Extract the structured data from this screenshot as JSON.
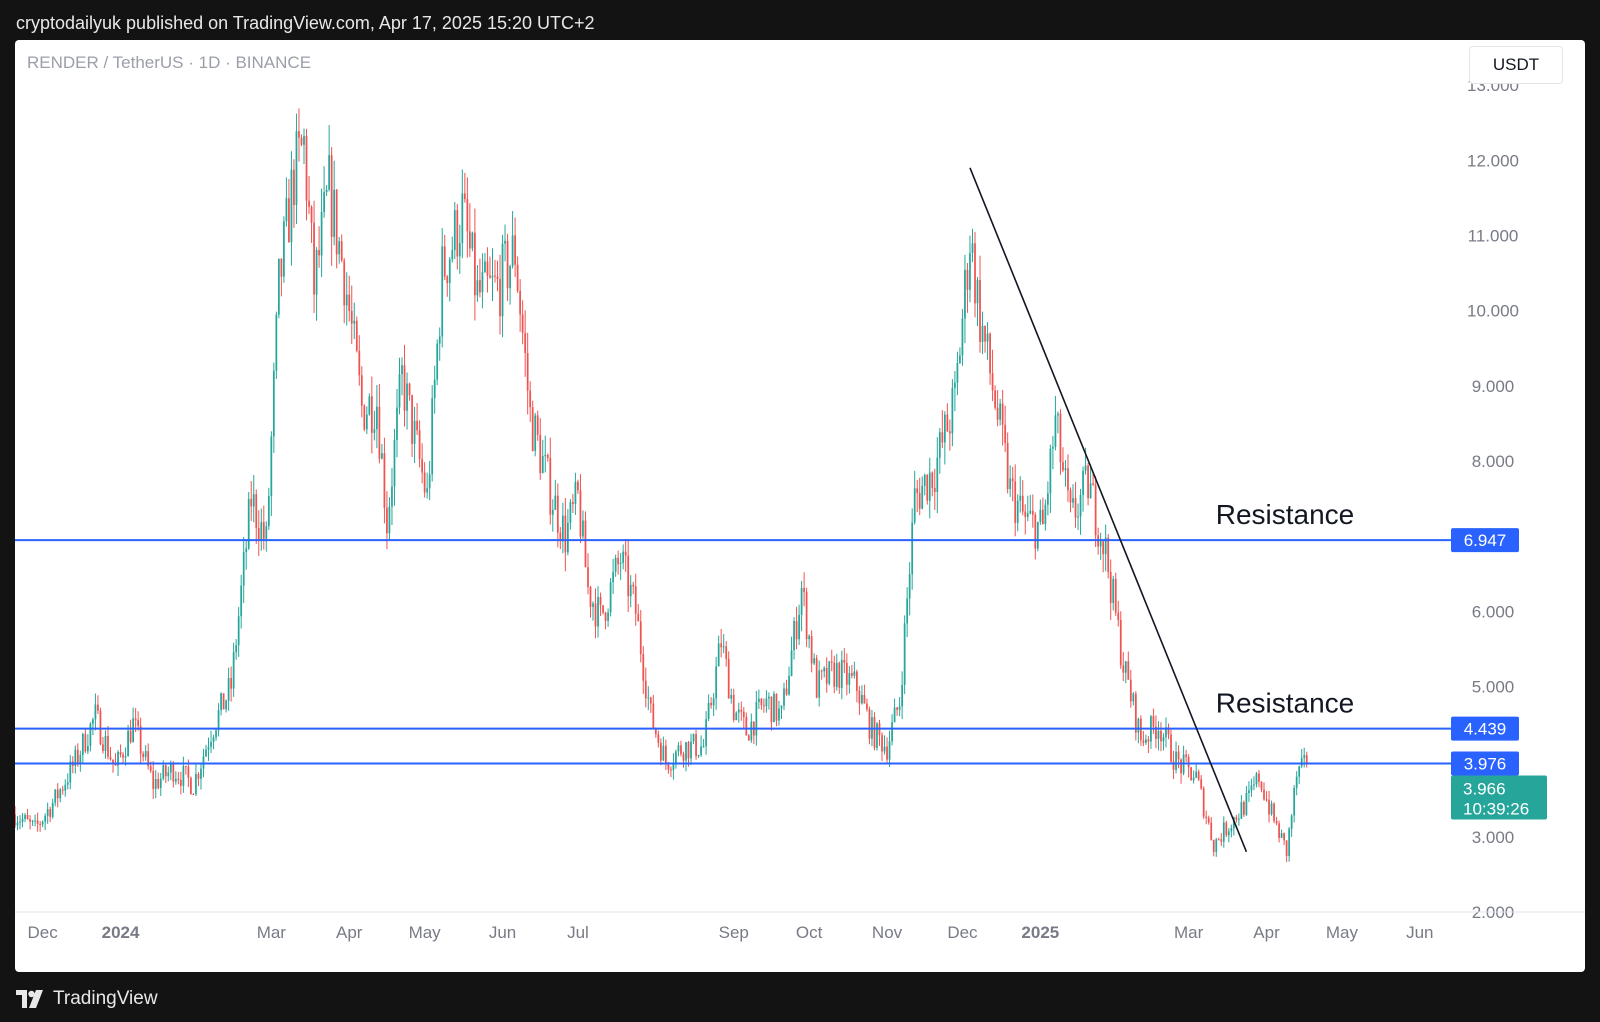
{
  "header": {
    "published_text": "cryptodailyuk published on TradingView.com, Apr 17, 2025 15:20 UTC+2"
  },
  "chart": {
    "symbol_line": "RENDER / TetherUS · 1D · BINANCE",
    "currency": "USDT"
  },
  "footer": {
    "brand": "TradingView",
    "logo_icon": "tradingview-logo-icon"
  },
  "colors": {
    "up": "#26a69a",
    "down": "#ef5350",
    "level_line": "#2962ff",
    "last_price_bg": "#26a69a",
    "axis_text": "#787b86",
    "trendline": "#131722"
  },
  "chart_data": {
    "type": "candlestick",
    "title": "RENDER / TetherUS · 1D · BINANCE",
    "ylim": [
      2.0,
      13.6
    ],
    "y_ticks": [
      {
        "value": 13,
        "label": "13.000"
      },
      {
        "value": 12,
        "label": "12.000"
      },
      {
        "value": 11,
        "label": "11.000"
      },
      {
        "value": 10,
        "label": "10.000"
      },
      {
        "value": 9,
        "label": "9.000"
      },
      {
        "value": 8,
        "label": "8.000"
      },
      {
        "value": 6,
        "label": "6.000"
      },
      {
        "value": 5,
        "label": "5.000"
      },
      {
        "value": 3,
        "label": "3.000"
      },
      {
        "value": 2,
        "label": "2.000"
      }
    ],
    "x_range": [
      "2023-11-20",
      "2025-06-15"
    ],
    "x_ticks": [
      {
        "date": "2023-12-01",
        "label": "Dec",
        "bold": false
      },
      {
        "date": "2024-01-01",
        "label": "2024",
        "bold": true
      },
      {
        "date": "2024-03-01",
        "label": "Mar",
        "bold": false
      },
      {
        "date": "2024-04-01",
        "label": "Apr",
        "bold": false
      },
      {
        "date": "2024-05-01",
        "label": "May",
        "bold": false
      },
      {
        "date": "2024-06-01",
        "label": "Jun",
        "bold": false
      },
      {
        "date": "2024-07-01",
        "label": "Jul",
        "bold": false
      },
      {
        "date": "2024-09-01",
        "label": "Sep",
        "bold": false
      },
      {
        "date": "2024-10-01",
        "label": "Oct",
        "bold": false
      },
      {
        "date": "2024-11-01",
        "label": "Nov",
        "bold": false
      },
      {
        "date": "2024-12-01",
        "label": "Dec",
        "bold": false
      },
      {
        "date": "2025-01-01",
        "label": "2025",
        "bold": true
      },
      {
        "date": "2025-03-01",
        "label": "Mar",
        "bold": false
      },
      {
        "date": "2025-04-01",
        "label": "Apr",
        "bold": false
      },
      {
        "date": "2025-05-01",
        "label": "May",
        "bold": false
      },
      {
        "date": "2025-06-01",
        "label": "Jun",
        "bold": false
      }
    ],
    "anchors": [
      [
        "2023-11-20",
        3.3
      ],
      [
        "2023-11-28",
        3.1
      ],
      [
        "2023-12-06",
        3.5
      ],
      [
        "2023-12-14",
        4.0
      ],
      [
        "2023-12-22",
        4.6
      ],
      [
        "2023-12-30",
        3.9
      ],
      [
        "2024-01-06",
        4.5
      ],
      [
        "2024-01-14",
        3.7
      ],
      [
        "2024-01-22",
        3.9
      ],
      [
        "2024-01-30",
        3.7
      ],
      [
        "2024-02-06",
        4.4
      ],
      [
        "2024-02-14",
        5.0
      ],
      [
        "2024-02-22",
        7.5
      ],
      [
        "2024-02-28",
        6.9
      ],
      [
        "2024-03-04",
        10.3
      ],
      [
        "2024-03-10",
        11.8
      ],
      [
        "2024-03-14",
        12.2
      ],
      [
        "2024-03-18",
        10.3
      ],
      [
        "2024-03-24",
        11.6
      ],
      [
        "2024-03-30",
        10.5
      ],
      [
        "2024-04-06",
        8.7
      ],
      [
        "2024-04-12",
        8.8
      ],
      [
        "2024-04-16",
        7.2
      ],
      [
        "2024-04-22",
        9.1
      ],
      [
        "2024-05-02",
        7.5
      ],
      [
        "2024-05-08",
        10.5
      ],
      [
        "2024-05-16",
        11.3
      ],
      [
        "2024-05-22",
        10.2
      ],
      [
        "2024-05-30",
        10.3
      ],
      [
        "2024-06-06",
        10.8
      ],
      [
        "2024-06-12",
        8.6
      ],
      [
        "2024-06-20",
        7.6
      ],
      [
        "2024-06-26",
        7.0
      ],
      [
        "2024-07-01",
        7.5
      ],
      [
        "2024-07-05",
        6.3
      ],
      [
        "2024-07-10",
        5.9
      ],
      [
        "2024-07-18",
        6.7
      ],
      [
        "2024-07-24",
        6.0
      ],
      [
        "2024-07-30",
        4.6
      ],
      [
        "2024-08-05",
        4.0
      ],
      [
        "2024-08-12",
        4.2
      ],
      [
        "2024-08-20",
        4.2
      ],
      [
        "2024-08-27",
        5.6
      ],
      [
        "2024-09-01",
        4.7
      ],
      [
        "2024-09-06",
        4.4
      ],
      [
        "2024-09-14",
        4.8
      ],
      [
        "2024-09-20",
        4.6
      ],
      [
        "2024-09-28",
        6.3
      ],
      [
        "2024-10-04",
        5.0
      ],
      [
        "2024-10-12",
        5.2
      ],
      [
        "2024-10-20",
        5.0
      ],
      [
        "2024-10-26",
        4.4
      ],
      [
        "2024-11-01",
        4.2
      ],
      [
        "2024-11-06",
        4.8
      ],
      [
        "2024-11-12",
        7.5
      ],
      [
        "2024-11-20",
        7.9
      ],
      [
        "2024-11-28",
        8.8
      ],
      [
        "2024-12-04",
        11.0
      ],
      [
        "2024-12-08",
        9.9
      ],
      [
        "2024-12-14",
        8.8
      ],
      [
        "2024-12-20",
        7.6
      ],
      [
        "2024-12-26",
        7.2
      ],
      [
        "2025-01-02",
        7.1
      ],
      [
        "2025-01-07",
        8.5
      ],
      [
        "2025-01-13",
        7.2
      ],
      [
        "2025-01-20",
        7.7
      ],
      [
        "2025-01-27",
        6.8
      ],
      [
        "2025-02-03",
        5.3
      ],
      [
        "2025-02-10",
        4.3
      ],
      [
        "2025-02-17",
        4.5
      ],
      [
        "2025-02-24",
        4.0
      ],
      [
        "2025-03-04",
        3.8
      ],
      [
        "2025-03-11",
        2.9
      ],
      [
        "2025-03-18",
        3.2
      ],
      [
        "2025-03-25",
        3.5
      ],
      [
        "2025-03-29",
        3.8
      ],
      [
        "2025-04-03",
        3.3
      ],
      [
        "2025-04-09",
        2.8
      ],
      [
        "2025-04-13",
        3.8
      ],
      [
        "2025-04-17",
        3.966
      ]
    ],
    "levels": [
      {
        "price": 6.947,
        "label": "6.947",
        "name": "Resistance"
      },
      {
        "price": 4.439,
        "label": "4.439",
        "name": "Resistance"
      },
      {
        "price": 3.976,
        "label": "3.976",
        "name": ""
      }
    ],
    "trendline": {
      "from": [
        "2024-12-04",
        11.9
      ],
      "to": [
        "2025-03-24",
        2.8
      ]
    },
    "last_price": {
      "value": 3.966,
      "label": "3.966",
      "countdown": "10:39:26"
    }
  }
}
